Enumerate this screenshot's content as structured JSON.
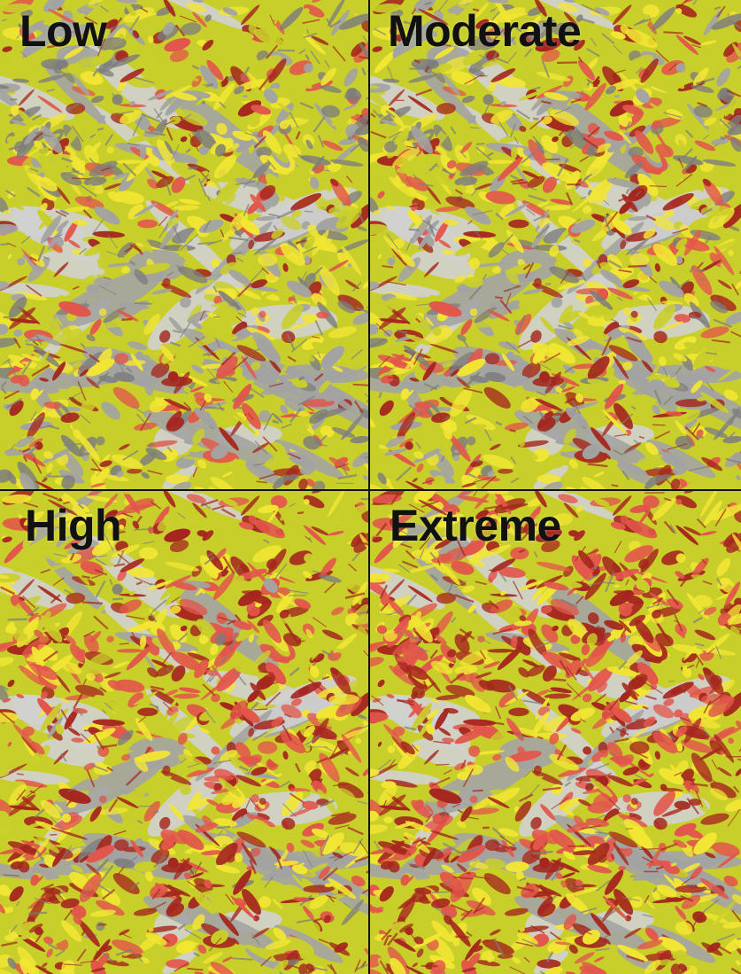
{
  "panels": [
    {
      "label": "Low",
      "key": "low",
      "level": 0.25
    },
    {
      "label": "Moderate",
      "key": "moderate",
      "level": 0.35
    },
    {
      "label": "High",
      "key": "high",
      "level": 0.55
    },
    {
      "label": "Extreme",
      "key": "extreme",
      "level": 0.72
    }
  ],
  "colors": {
    "background": "#b9b9b9",
    "gray_terrain": "#a3a3a3",
    "gray_shadow": "#7d7d7d",
    "gray_light": "#d0d0d0",
    "yellow_green": "#c9cf2a",
    "yellow": "#f2e634",
    "red_light": "#e2564b",
    "red_dark": "#a5261e",
    "divider": "#111111"
  }
}
